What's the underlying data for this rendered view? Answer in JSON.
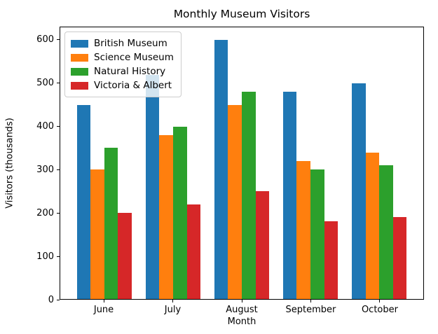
{
  "title": "Monthly Museum Visitors",
  "chart_data": {
    "type": "bar",
    "title": "Monthly Museum Visitors",
    "xlabel": "Month",
    "ylabel": "Visitors (thousands)",
    "categories": [
      "June",
      "July",
      "August",
      "September",
      "October"
    ],
    "series": [
      {
        "name": "British Museum",
        "color": "#1f77b4",
        "values": [
          450,
          520,
          600,
          480,
          500
        ]
      },
      {
        "name": "Science Museum",
        "color": "#ff7f0e",
        "values": [
          300,
          380,
          450,
          320,
          340
        ]
      },
      {
        "name": "Natural History",
        "color": "#2ca02c",
        "values": [
          350,
          400,
          480,
          300,
          310
        ]
      },
      {
        "name": "Victoria & Albert",
        "color": "#d62728",
        "values": [
          200,
          220,
          250,
          180,
          190
        ]
      }
    ],
    "yticks": [
      0,
      100,
      200,
      300,
      400,
      500,
      600
    ],
    "ylim": [
      0,
      630
    ],
    "bar_width_units": 0.2,
    "xlim": [
      -0.64,
      4.64
    ],
    "legend_position": "upper left",
    "grid": false
  }
}
